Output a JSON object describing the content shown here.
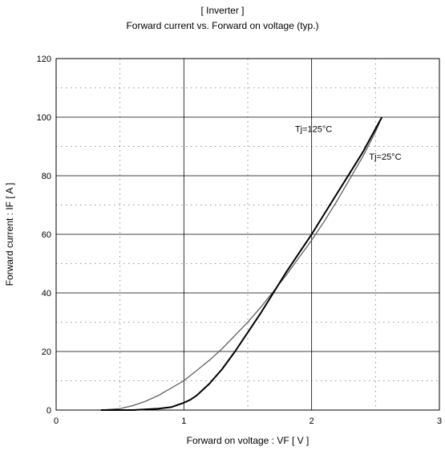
{
  "chart_data": {
    "type": "line",
    "title": "[ Inverter ]",
    "subtitle": "Forward current  vs.  Forward on voltage  (typ.)",
    "xlabel": "Forward on voltage  :  VF  [ V ]",
    "ylabel": "Forward current  :  IF  [ A ]",
    "xlim": [
      0,
      3
    ],
    "ylim": [
      0,
      120
    ],
    "xticks": [
      0,
      1,
      2,
      3
    ],
    "yticks": [
      0,
      20,
      40,
      60,
      80,
      100,
      120
    ],
    "xtick_labels": [
      "0",
      "1",
      "2",
      "3"
    ],
    "ytick_labels": [
      "0",
      "20",
      "40",
      "60",
      "80",
      "100",
      "120"
    ],
    "grid": "solid major lines, dotted minor lines",
    "legend": "none (curves labelled inline)",
    "series": [
      {
        "name": "Tj=125°C",
        "color": "#555555",
        "x": [
          0.35,
          0.5,
          0.6,
          0.7,
          0.8,
          0.9,
          1.0,
          1.1,
          1.2,
          1.3,
          1.4,
          1.5,
          1.6,
          1.7,
          1.8,
          1.9,
          2.0,
          2.1,
          2.2,
          2.3,
          2.4,
          2.5,
          2.55
        ],
        "y": [
          0,
          0.5,
          1.5,
          3,
          5,
          7.5,
          10,
          13.5,
          17,
          21,
          25.5,
          30,
          35,
          40.5,
          46,
          52,
          58,
          64.5,
          71.5,
          79,
          86.5,
          95,
          100
        ]
      },
      {
        "name": "Tj=25°C",
        "color": "#000000",
        "x": [
          0.35,
          0.6,
          0.8,
          0.9,
          1.0,
          1.05,
          1.1,
          1.2,
          1.3,
          1.4,
          1.5,
          1.6,
          1.7,
          1.8,
          1.9,
          2.0,
          2.1,
          2.2,
          2.3,
          2.4,
          2.5,
          2.55
        ],
        "y": [
          0,
          0,
          0.5,
          1,
          2.5,
          3.5,
          5,
          9,
          14,
          20,
          26.5,
          33,
          40,
          47,
          53.5,
          60,
          67,
          74,
          81,
          88,
          96,
          100
        ]
      }
    ],
    "annotations": [
      {
        "text": "Tj=125°C",
        "x": 1.87,
        "y": 95,
        "series": 0
      },
      {
        "text": "Tj=25°C",
        "x": 2.45,
        "y": 85.5,
        "series": 1
      }
    ]
  }
}
